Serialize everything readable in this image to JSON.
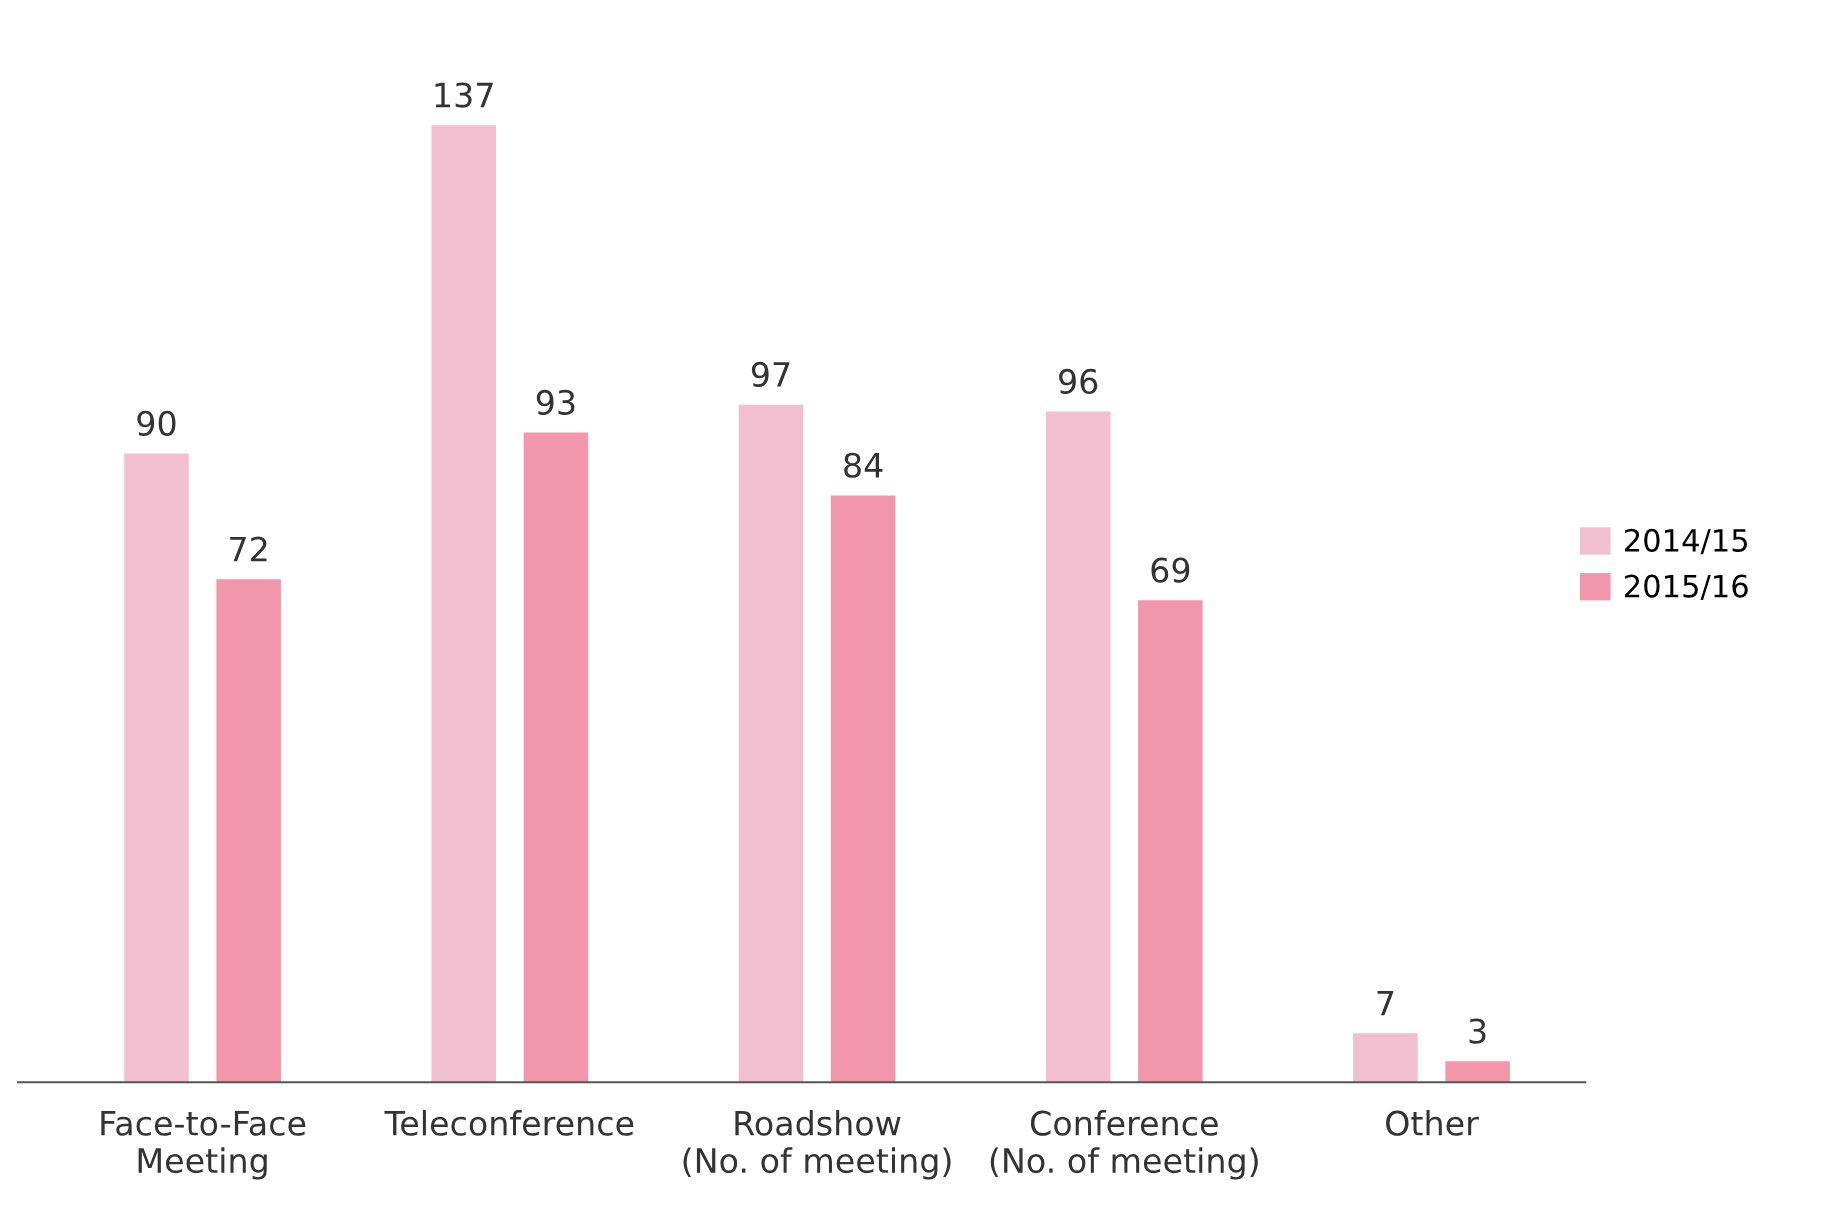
{
  "chart_data": {
    "type": "bar",
    "categories": [
      "Face-to-Face\nMeeting",
      "Teleconference",
      "Roadshow\n(No. of meeting)",
      "Conference\n(No. of meeting)",
      "Other"
    ],
    "series": [
      {
        "name": "2014/15",
        "color": "#f2bfd0",
        "values": [
          90,
          137,
          97,
          96,
          7
        ]
      },
      {
        "name": "2015/16",
        "color": "#f297ab",
        "values": [
          72,
          93,
          84,
          69,
          3
        ]
      }
    ],
    "data_labels": true,
    "legend": "right",
    "grid": false
  }
}
